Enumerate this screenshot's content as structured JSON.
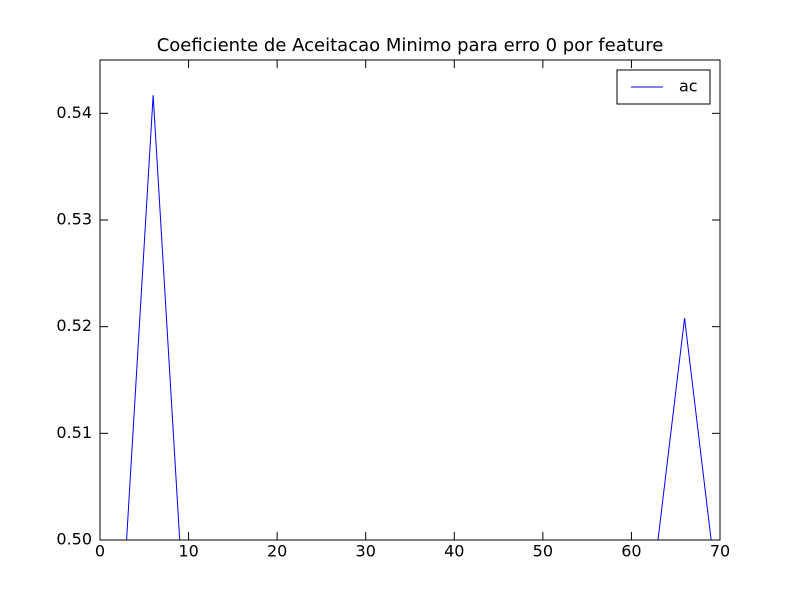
{
  "chart_data": {
    "type": "line",
    "title": "Coeficiente de Aceitacao Minimo para erro 0 por feature",
    "x": [
      0,
      3,
      6,
      9,
      12,
      15,
      18,
      21,
      24,
      27,
      30,
      33,
      36,
      39,
      42,
      45,
      48,
      51,
      54,
      57,
      60,
      63,
      66,
      69
    ],
    "series": [
      {
        "name": "ac",
        "color": "#0000ff",
        "values": [
          0.5,
          0.5,
          0.5417,
          0.5,
          0.5,
          0.5,
          0.5,
          0.5,
          0.5,
          0.5,
          0.5,
          0.5,
          0.5,
          0.5,
          0.5,
          0.5,
          0.5,
          0.5,
          0.5,
          0.5,
          0.5,
          0.5,
          0.5208,
          0.5
        ]
      }
    ],
    "xlim": [
      0,
      70
    ],
    "xticks": [
      0,
      10,
      20,
      30,
      40,
      50,
      60,
      70
    ],
    "ylim": [
      0.5,
      0.545
    ],
    "yticks": [
      {
        "value": 0.5,
        "label": "0.50"
      },
      0.51,
      0.52,
      0.53,
      0.54
    ],
    "legend": "upper right",
    "grid": false
  }
}
